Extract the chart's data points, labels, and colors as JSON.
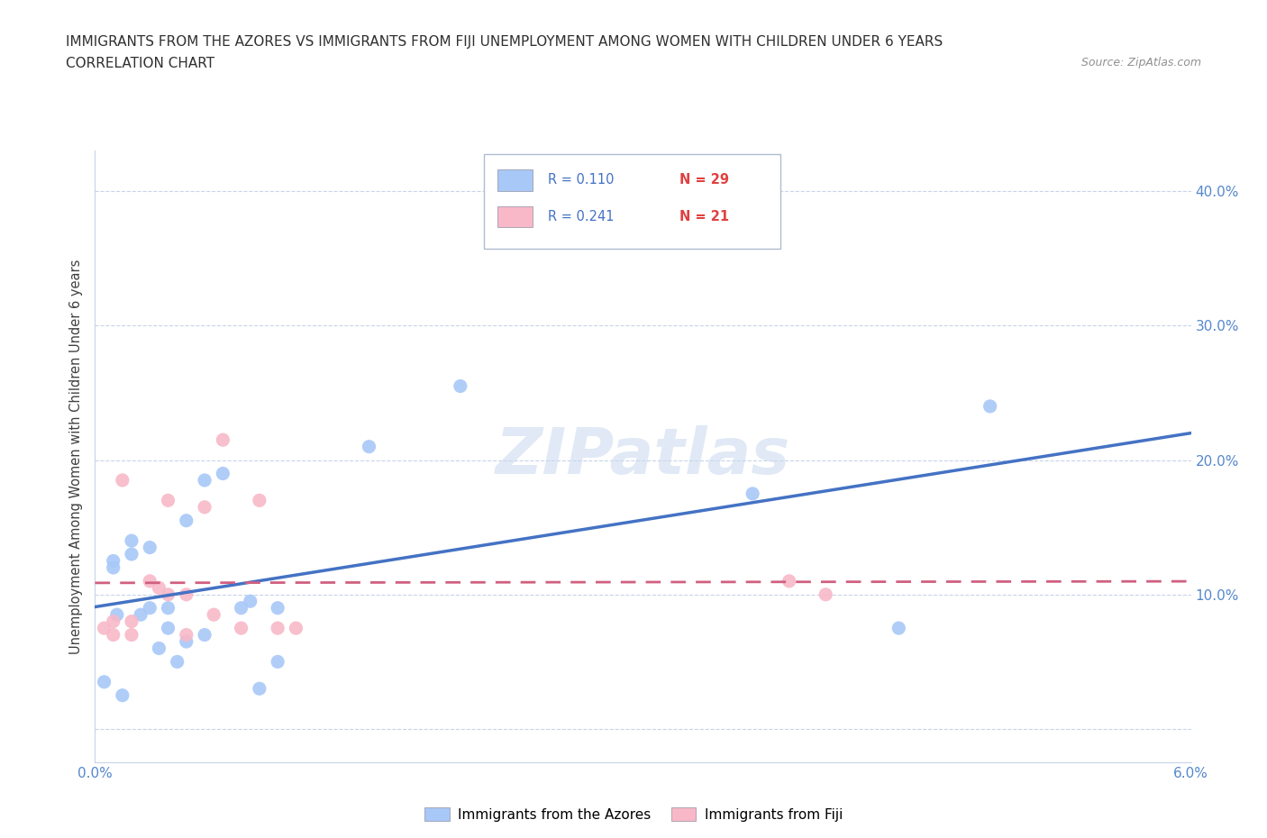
{
  "title_line1": "IMMIGRANTS FROM THE AZORES VS IMMIGRANTS FROM FIJI UNEMPLOYMENT AMONG WOMEN WITH CHILDREN UNDER 6 YEARS",
  "title_line2": "CORRELATION CHART",
  "source_text": "Source: ZipAtlas.com",
  "ylabel": "Unemployment Among Women with Children Under 6 years",
  "xlim": [
    0.0,
    0.06
  ],
  "ylim": [
    -0.025,
    0.43
  ],
  "yticks": [
    0.0,
    0.1,
    0.2,
    0.3,
    0.4
  ],
  "ytick_labels_right": [
    "",
    "10.0%",
    "20.0%",
    "30.0%",
    "40.0%"
  ],
  "xticks": [
    0.0,
    0.01,
    0.02,
    0.03,
    0.04,
    0.05,
    0.06
  ],
  "xtick_labels": [
    "0.0%",
    "",
    "",
    "",
    "",
    "",
    "6.0%"
  ],
  "color_azores": "#a8c8f8",
  "color_fiji": "#f8b8c8",
  "color_trend_azores": "#4472c4",
  "color_trend_fiji": "#d06080",
  "watermark_text": "ZIPatlas",
  "azores_x": [
    0.0005,
    0.001,
    0.001,
    0.0012,
    0.0015,
    0.002,
    0.002,
    0.0025,
    0.003,
    0.003,
    0.0035,
    0.004,
    0.004,
    0.0045,
    0.005,
    0.005,
    0.006,
    0.006,
    0.007,
    0.008,
    0.0085,
    0.009,
    0.01,
    0.01,
    0.015,
    0.02,
    0.036,
    0.044,
    0.049
  ],
  "azores_y": [
    0.035,
    0.12,
    0.125,
    0.085,
    0.025,
    0.14,
    0.13,
    0.085,
    0.135,
    0.09,
    0.06,
    0.09,
    0.075,
    0.05,
    0.155,
    0.065,
    0.185,
    0.07,
    0.19,
    0.09,
    0.095,
    0.03,
    0.09,
    0.05,
    0.21,
    0.255,
    0.175,
    0.075,
    0.24
  ],
  "fiji_x": [
    0.0005,
    0.001,
    0.001,
    0.0015,
    0.002,
    0.002,
    0.003,
    0.0035,
    0.004,
    0.004,
    0.005,
    0.005,
    0.006,
    0.0065,
    0.007,
    0.008,
    0.009,
    0.01,
    0.011,
    0.038,
    0.04
  ],
  "fiji_y": [
    0.075,
    0.08,
    0.07,
    0.185,
    0.08,
    0.07,
    0.11,
    0.105,
    0.17,
    0.1,
    0.1,
    0.07,
    0.165,
    0.085,
    0.215,
    0.075,
    0.17,
    0.075,
    0.075,
    0.11,
    0.1
  ],
  "legend_entries": [
    {
      "label_r": "R = 0.110",
      "label_n": "N = 29",
      "color": "#a8c8f8"
    },
    {
      "label_r": "R = 0.241",
      "label_n": "N = 21",
      "color": "#f8b8c8"
    }
  ],
  "bottom_legend": [
    {
      "label": "Immigrants from the Azores",
      "color": "#a8c8f8"
    },
    {
      "label": "Immigrants from Fiji",
      "color": "#f8b8c8"
    }
  ]
}
